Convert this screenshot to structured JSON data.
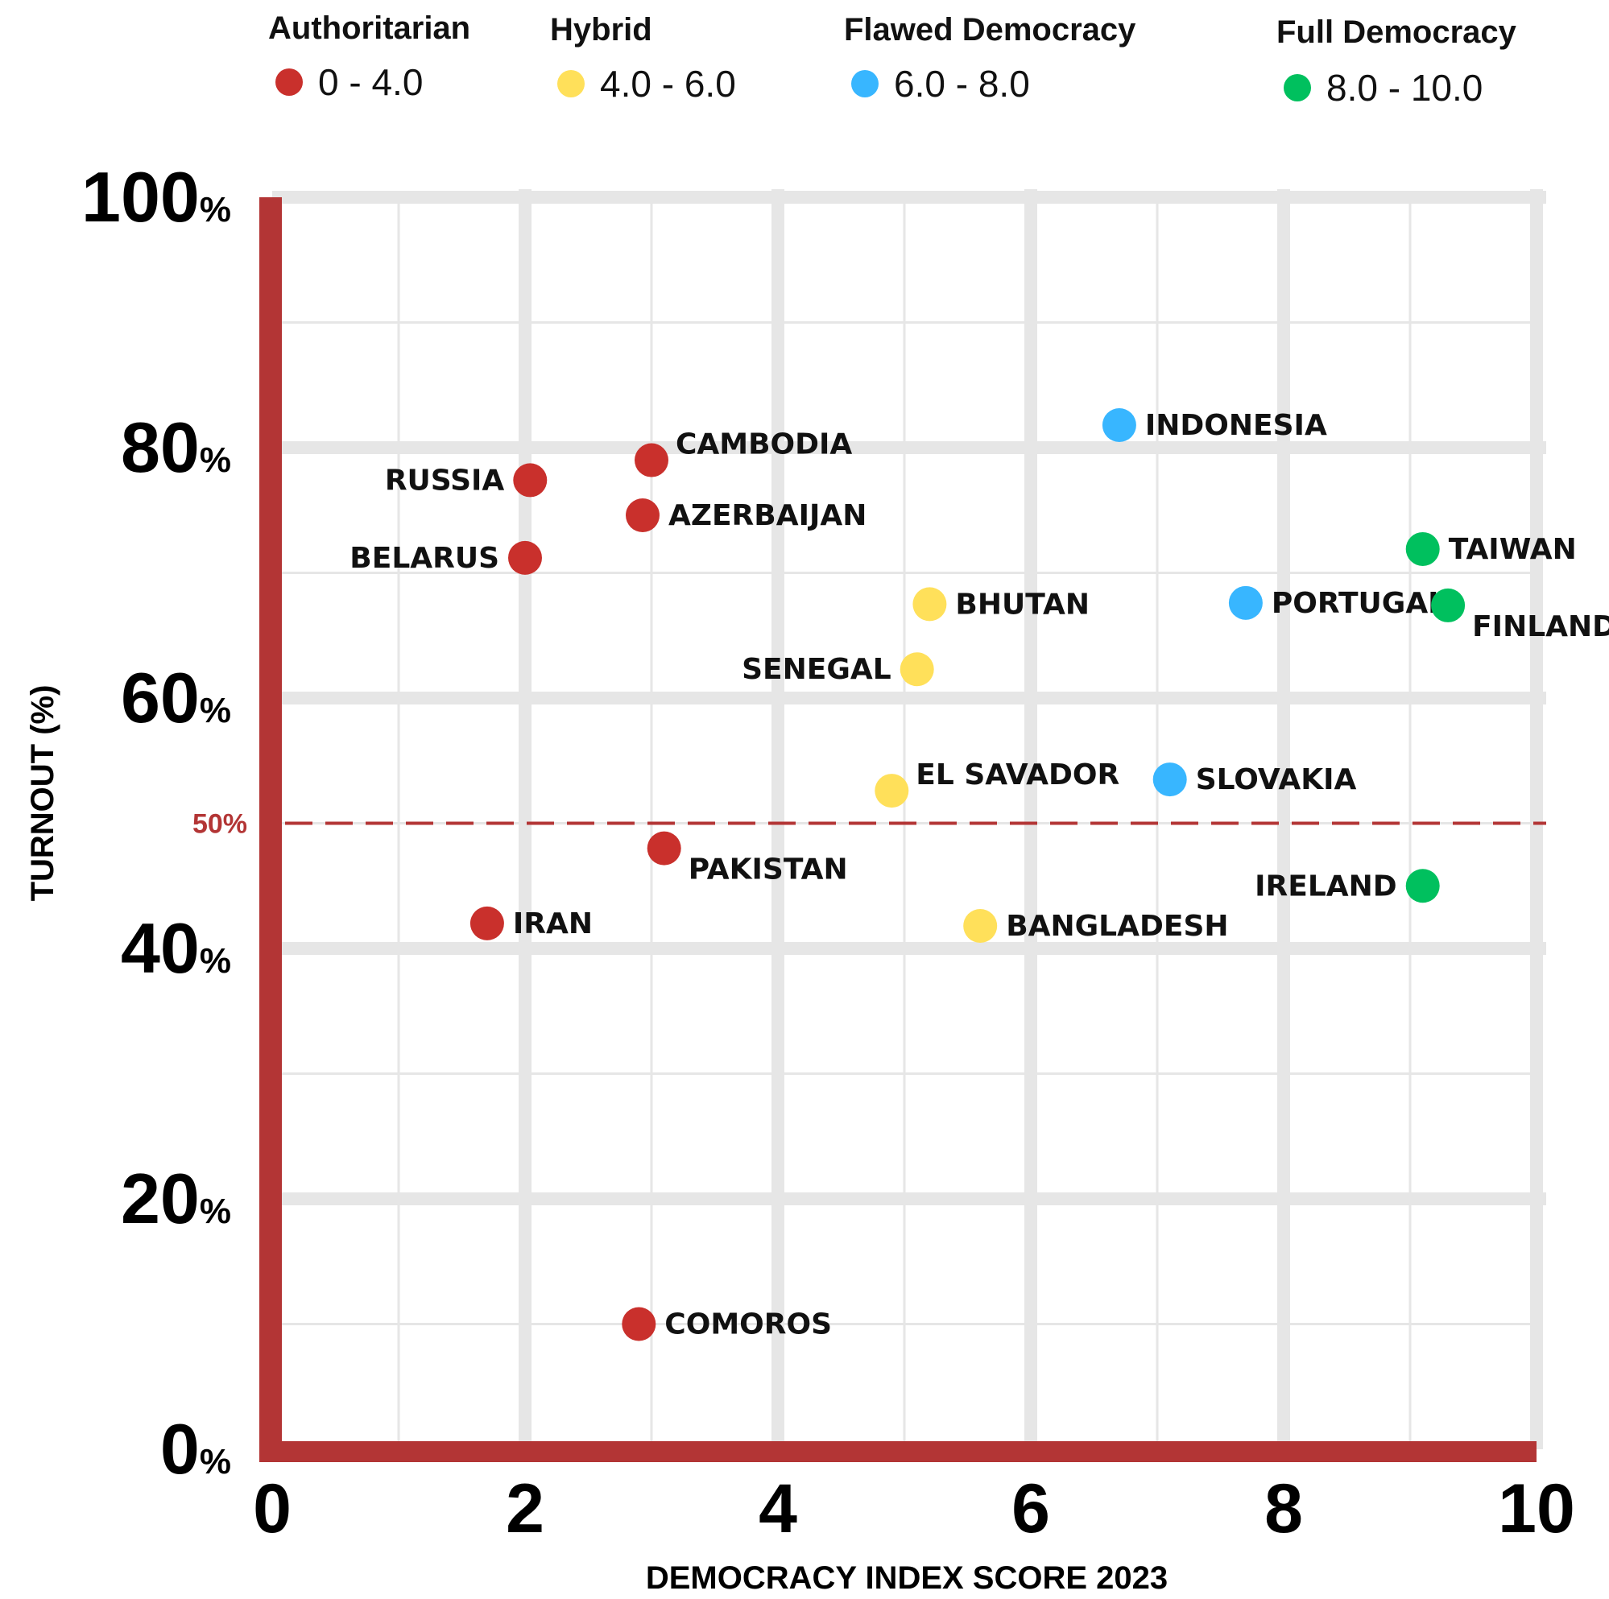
{
  "chart_data": {
    "type": "scatter",
    "xlabel": "DEMOCRACY INDEX SCORE 2023",
    "ylabel": "TURNOUT (%)",
    "xlim": [
      0,
      10
    ],
    "ylim": [
      0,
      100
    ],
    "x_ticks": [
      "0",
      "2",
      "4",
      "6",
      "8",
      "10"
    ],
    "y_ticks": [
      {
        "value": "0",
        "unit": "%"
      },
      {
        "value": "20",
        "unit": "%"
      },
      {
        "value": "40",
        "unit": "%"
      },
      {
        "value": "60",
        "unit": "%"
      },
      {
        "value": "80",
        "unit": "%"
      },
      {
        "value": "100",
        "unit": "%"
      }
    ],
    "grid": true,
    "reference_line": {
      "y": 50,
      "label": "50%",
      "color": "#b33535"
    },
    "axis_color": "#b33535",
    "grid_color": "#e6e6e6",
    "legend_position": "top",
    "categories": [
      {
        "name": "Authoritarian",
        "range": "0 - 4.0",
        "color": "#c9302c"
      },
      {
        "name": "Hybrid",
        "range": "4.0 - 6.0",
        "color": "#ffe05a"
      },
      {
        "name": "Flawed Democracy",
        "range": "6.0 - 8.0",
        "color": "#38b6ff"
      },
      {
        "name": "Full Democracy",
        "range": "8.0 - 10.0",
        "color": "#00c05e"
      }
    ],
    "points": [
      {
        "label": "RUSSIA",
        "x": 2.04,
        "y": 77.4,
        "category": 0,
        "side": "left"
      },
      {
        "label": "CAMBODIA",
        "x": 3.0,
        "y": 79.0,
        "category": 0,
        "side": "right-up"
      },
      {
        "label": "AZERBAIJAN",
        "x": 2.93,
        "y": 74.6,
        "category": 0,
        "side": "right"
      },
      {
        "label": "BELARUS",
        "x": 2.0,
        "y": 71.2,
        "category": 0,
        "side": "left"
      },
      {
        "label": "PAKISTAN",
        "x": 3.1,
        "y": 48.0,
        "category": 0,
        "side": "right-down"
      },
      {
        "label": "IRAN",
        "x": 1.7,
        "y": 42.0,
        "category": 0,
        "side": "right"
      },
      {
        "label": "COMOROS",
        "x": 2.9,
        "y": 10.0,
        "category": 0,
        "side": "right"
      },
      {
        "label": "BHUTAN",
        "x": 5.2,
        "y": 67.5,
        "category": 1,
        "side": "right"
      },
      {
        "label": "SENEGAL",
        "x": 5.1,
        "y": 62.3,
        "category": 1,
        "side": "left"
      },
      {
        "label": "EL SAVADOR",
        "x": 4.9,
        "y": 52.6,
        "category": 1,
        "side": "right-up"
      },
      {
        "label": "BANGLADESH",
        "x": 5.6,
        "y": 41.8,
        "category": 1,
        "side": "right"
      },
      {
        "label": "INDONESIA",
        "x": 6.7,
        "y": 81.8,
        "category": 2,
        "side": "right"
      },
      {
        "label": "PORTUGAL",
        "x": 7.7,
        "y": 67.6,
        "category": 2,
        "side": "right"
      },
      {
        "label": "SLOVAKIA",
        "x": 7.1,
        "y": 53.5,
        "category": 2,
        "side": "right"
      },
      {
        "label": "TAIWAN",
        "x": 9.1,
        "y": 71.9,
        "category": 3,
        "side": "right"
      },
      {
        "label": "FINLAND",
        "x": 9.3,
        "y": 67.4,
        "category": 3,
        "side": "right-down"
      },
      {
        "label": "IRELAND",
        "x": 9.1,
        "y": 45.0,
        "category": 3,
        "side": "left"
      }
    ]
  }
}
